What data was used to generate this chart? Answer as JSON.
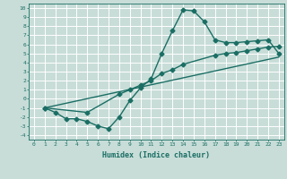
{
  "xlabel": "Humidex (Indice chaleur)",
  "bg_color": "#c8ddd8",
  "line_color": "#1a6e64",
  "grid_color": "#ffffff",
  "xlim": [
    -0.5,
    23.5
  ],
  "ylim": [
    -4.5,
    10.5
  ],
  "xticks": [
    0,
    1,
    2,
    3,
    4,
    5,
    6,
    7,
    8,
    9,
    10,
    11,
    12,
    13,
    14,
    15,
    16,
    17,
    18,
    19,
    20,
    21,
    22,
    23
  ],
  "yticks": [
    -4,
    -3,
    -2,
    -1,
    0,
    1,
    2,
    3,
    4,
    5,
    6,
    7,
    8,
    9,
    10
  ],
  "line1_x": [
    1,
    2,
    3,
    4,
    5,
    6,
    7,
    8,
    9,
    10,
    11,
    12,
    13,
    14,
    15,
    16,
    17,
    18,
    19,
    20,
    21,
    22,
    23
  ],
  "line1_y": [
    -1.0,
    -1.5,
    -2.2,
    -2.2,
    -2.5,
    -3.0,
    -3.3,
    -2.0,
    -0.2,
    1.2,
    2.2,
    5.0,
    7.5,
    9.8,
    9.7,
    8.5,
    6.5,
    6.2,
    6.2,
    6.3,
    6.4,
    6.5,
    5.0
  ],
  "line2_x": [
    1,
    5,
    8,
    9,
    10,
    11,
    12,
    13,
    14,
    17,
    18,
    19,
    20,
    21,
    22,
    23
  ],
  "line2_y": [
    -1.0,
    -1.5,
    0.5,
    1.0,
    1.5,
    2.0,
    2.8,
    3.2,
    3.8,
    4.8,
    5.0,
    5.1,
    5.3,
    5.5,
    5.7,
    5.8
  ],
  "line3_x": [
    1,
    23
  ],
  "line3_y": [
    -1.0,
    4.6
  ],
  "markersize": 2.5,
  "linewidth": 1.0
}
